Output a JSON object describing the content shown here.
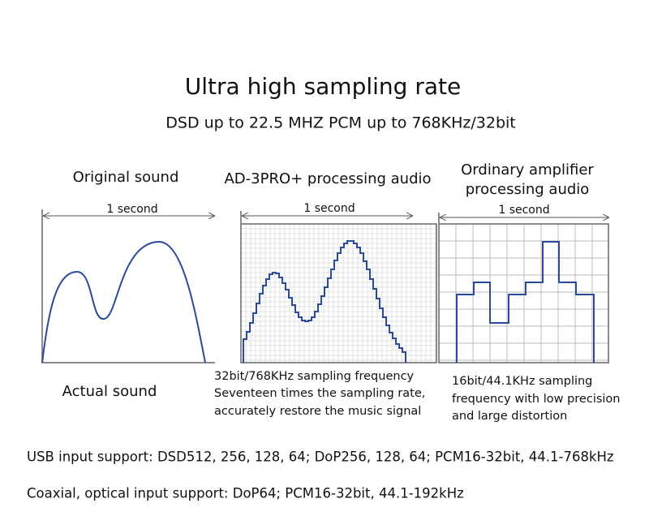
{
  "header": {
    "title": "Ultra high sampling rate",
    "subtitle": "DSD up to 22.5 MHZ PCM up to 768KHz/32bit"
  },
  "panels": [
    {
      "heading": [
        "Original sound"
      ],
      "span_label": "1 second",
      "caption": [
        "Actual sound"
      ]
    },
    {
      "heading": [
        "AD-3PRO+ processing audio"
      ],
      "span_label": "1 second",
      "caption": [
        "32bit/768KHz sampling frequency",
        "Seventeen times the sampling rate,",
        "accurately restore the music signal"
      ]
    },
    {
      "heading": [
        "Ordinary amplifier",
        "processing audio"
      ],
      "span_label": "1 second",
      "caption": [
        "16bit/44.1KHz sampling",
        "frequency with low precision",
        "and large distortion"
      ]
    }
  ],
  "footer": [
    "USB input support: DSD512, 256, 128, 64; DoP256, 128, 64; PCM16-32bit, 44.1-768kHz",
    "Coaxial, optical input support: DoP64; PCM16-32bit, 44.1-192kHz"
  ]
}
